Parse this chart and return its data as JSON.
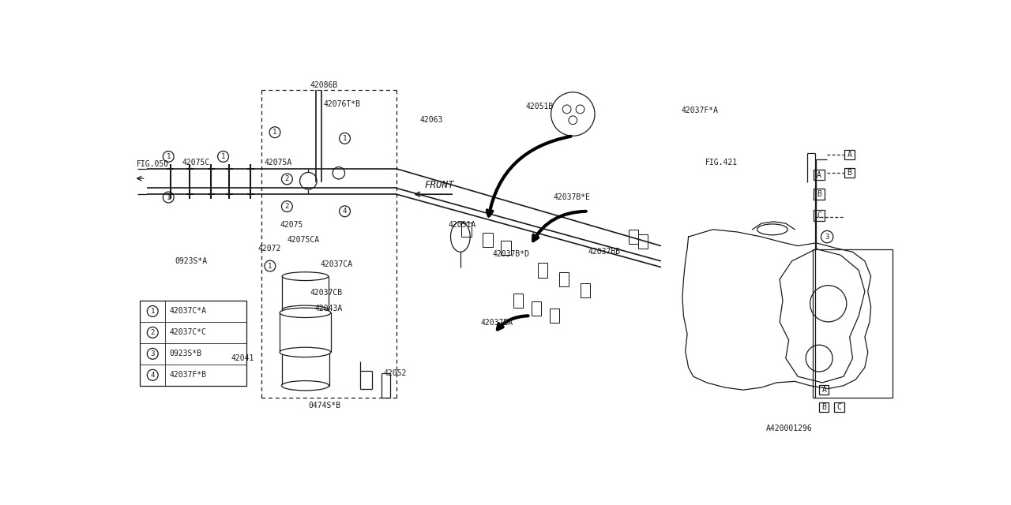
{
  "bg_color": "#ffffff",
  "line_color": "#1a1a1a",
  "fig_width": 12.8,
  "fig_height": 6.4,
  "legend": [
    {
      "num": "1",
      "code": "42037C*A"
    },
    {
      "num": "2",
      "code": "42037C*C"
    },
    {
      "num": "3",
      "code": "0923S*B"
    },
    {
      "num": "4",
      "code": "42037F*B"
    }
  ]
}
